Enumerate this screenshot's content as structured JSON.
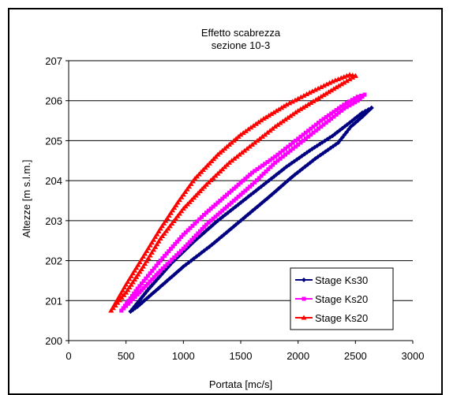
{
  "chart_data": {
    "type": "scatter",
    "title": [
      "Effetto scabrezza",
      "sezione 10-3"
    ],
    "xlabel": "Portata [mc/s]",
    "ylabel": "Altezze [m s.l.m.]",
    "xlim": [
      0,
      3000
    ],
    "ylim": [
      200,
      207
    ],
    "xticks": [
      0,
      500,
      1000,
      1500,
      2000,
      2500,
      3000
    ],
    "yticks": [
      200,
      201,
      202,
      203,
      204,
      205,
      206,
      207
    ],
    "grid": "horizontal",
    "legend_position": "bottom-right",
    "series": [
      {
        "name": "Stage Ks30",
        "color": "#000080",
        "marker": "diamond",
        "rising": [
          [
            540,
            200.73
          ],
          [
            700,
            201.3
          ],
          [
            900,
            201.95
          ],
          [
            1100,
            202.5
          ],
          [
            1300,
            203.0
          ],
          [
            1500,
            203.45
          ],
          [
            1700,
            203.9
          ],
          [
            1900,
            204.35
          ],
          [
            2100,
            204.75
          ],
          [
            2300,
            205.12
          ],
          [
            2450,
            205.45
          ],
          [
            2560,
            205.7
          ],
          [
            2640,
            205.82
          ]
        ],
        "falling": [
          [
            2640,
            205.82
          ],
          [
            2560,
            205.6
          ],
          [
            2460,
            205.35
          ],
          [
            2350,
            204.95
          ],
          [
            2150,
            204.55
          ],
          [
            1950,
            204.1
          ],
          [
            1750,
            203.6
          ],
          [
            1500,
            203.0
          ],
          [
            1250,
            202.4
          ],
          [
            1000,
            201.85
          ],
          [
            780,
            201.3
          ],
          [
            600,
            200.85
          ],
          [
            540,
            200.73
          ]
        ]
      },
      {
        "name": "Stage Ks20",
        "color": "#ff00ff",
        "marker": "square",
        "rising": [
          [
            460,
            200.75
          ],
          [
            600,
            201.3
          ],
          [
            800,
            202.0
          ],
          [
            1000,
            202.65
          ],
          [
            1200,
            203.2
          ],
          [
            1400,
            203.7
          ],
          [
            1600,
            204.2
          ],
          [
            1800,
            204.6
          ],
          [
            2000,
            205.05
          ],
          [
            2200,
            205.5
          ],
          [
            2400,
            205.9
          ],
          [
            2520,
            206.1
          ],
          [
            2580,
            206.15
          ]
        ],
        "falling": [
          [
            2580,
            206.15
          ],
          [
            2520,
            206.0
          ],
          [
            2400,
            205.8
          ],
          [
            2200,
            205.35
          ],
          [
            2000,
            204.9
          ],
          [
            1800,
            204.45
          ],
          [
            1600,
            203.9
          ],
          [
            1400,
            203.4
          ],
          [
            1200,
            202.9
          ],
          [
            1000,
            202.3
          ],
          [
            800,
            201.75
          ],
          [
            600,
            201.15
          ],
          [
            460,
            200.75
          ]
        ]
      },
      {
        "name": "Stage Ks20",
        "color": "#ff0000",
        "marker": "triangle",
        "rising": [
          [
            370,
            200.75
          ],
          [
            500,
            201.4
          ],
          [
            650,
            202.1
          ],
          [
            800,
            202.8
          ],
          [
            950,
            203.45
          ],
          [
            1100,
            204.05
          ],
          [
            1300,
            204.65
          ],
          [
            1500,
            205.15
          ],
          [
            1700,
            205.55
          ],
          [
            1900,
            205.9
          ],
          [
            2100,
            206.2
          ],
          [
            2300,
            206.48
          ],
          [
            2450,
            206.65
          ],
          [
            2500,
            206.62
          ]
        ],
        "falling": [
          [
            2500,
            206.62
          ],
          [
            2400,
            206.45
          ],
          [
            2200,
            206.1
          ],
          [
            2000,
            205.75
          ],
          [
            1800,
            205.35
          ],
          [
            1600,
            204.9
          ],
          [
            1400,
            204.45
          ],
          [
            1200,
            203.9
          ],
          [
            1000,
            203.3
          ],
          [
            800,
            202.55
          ],
          [
            650,
            201.85
          ],
          [
            500,
            201.2
          ],
          [
            370,
            200.75
          ]
        ]
      }
    ]
  }
}
